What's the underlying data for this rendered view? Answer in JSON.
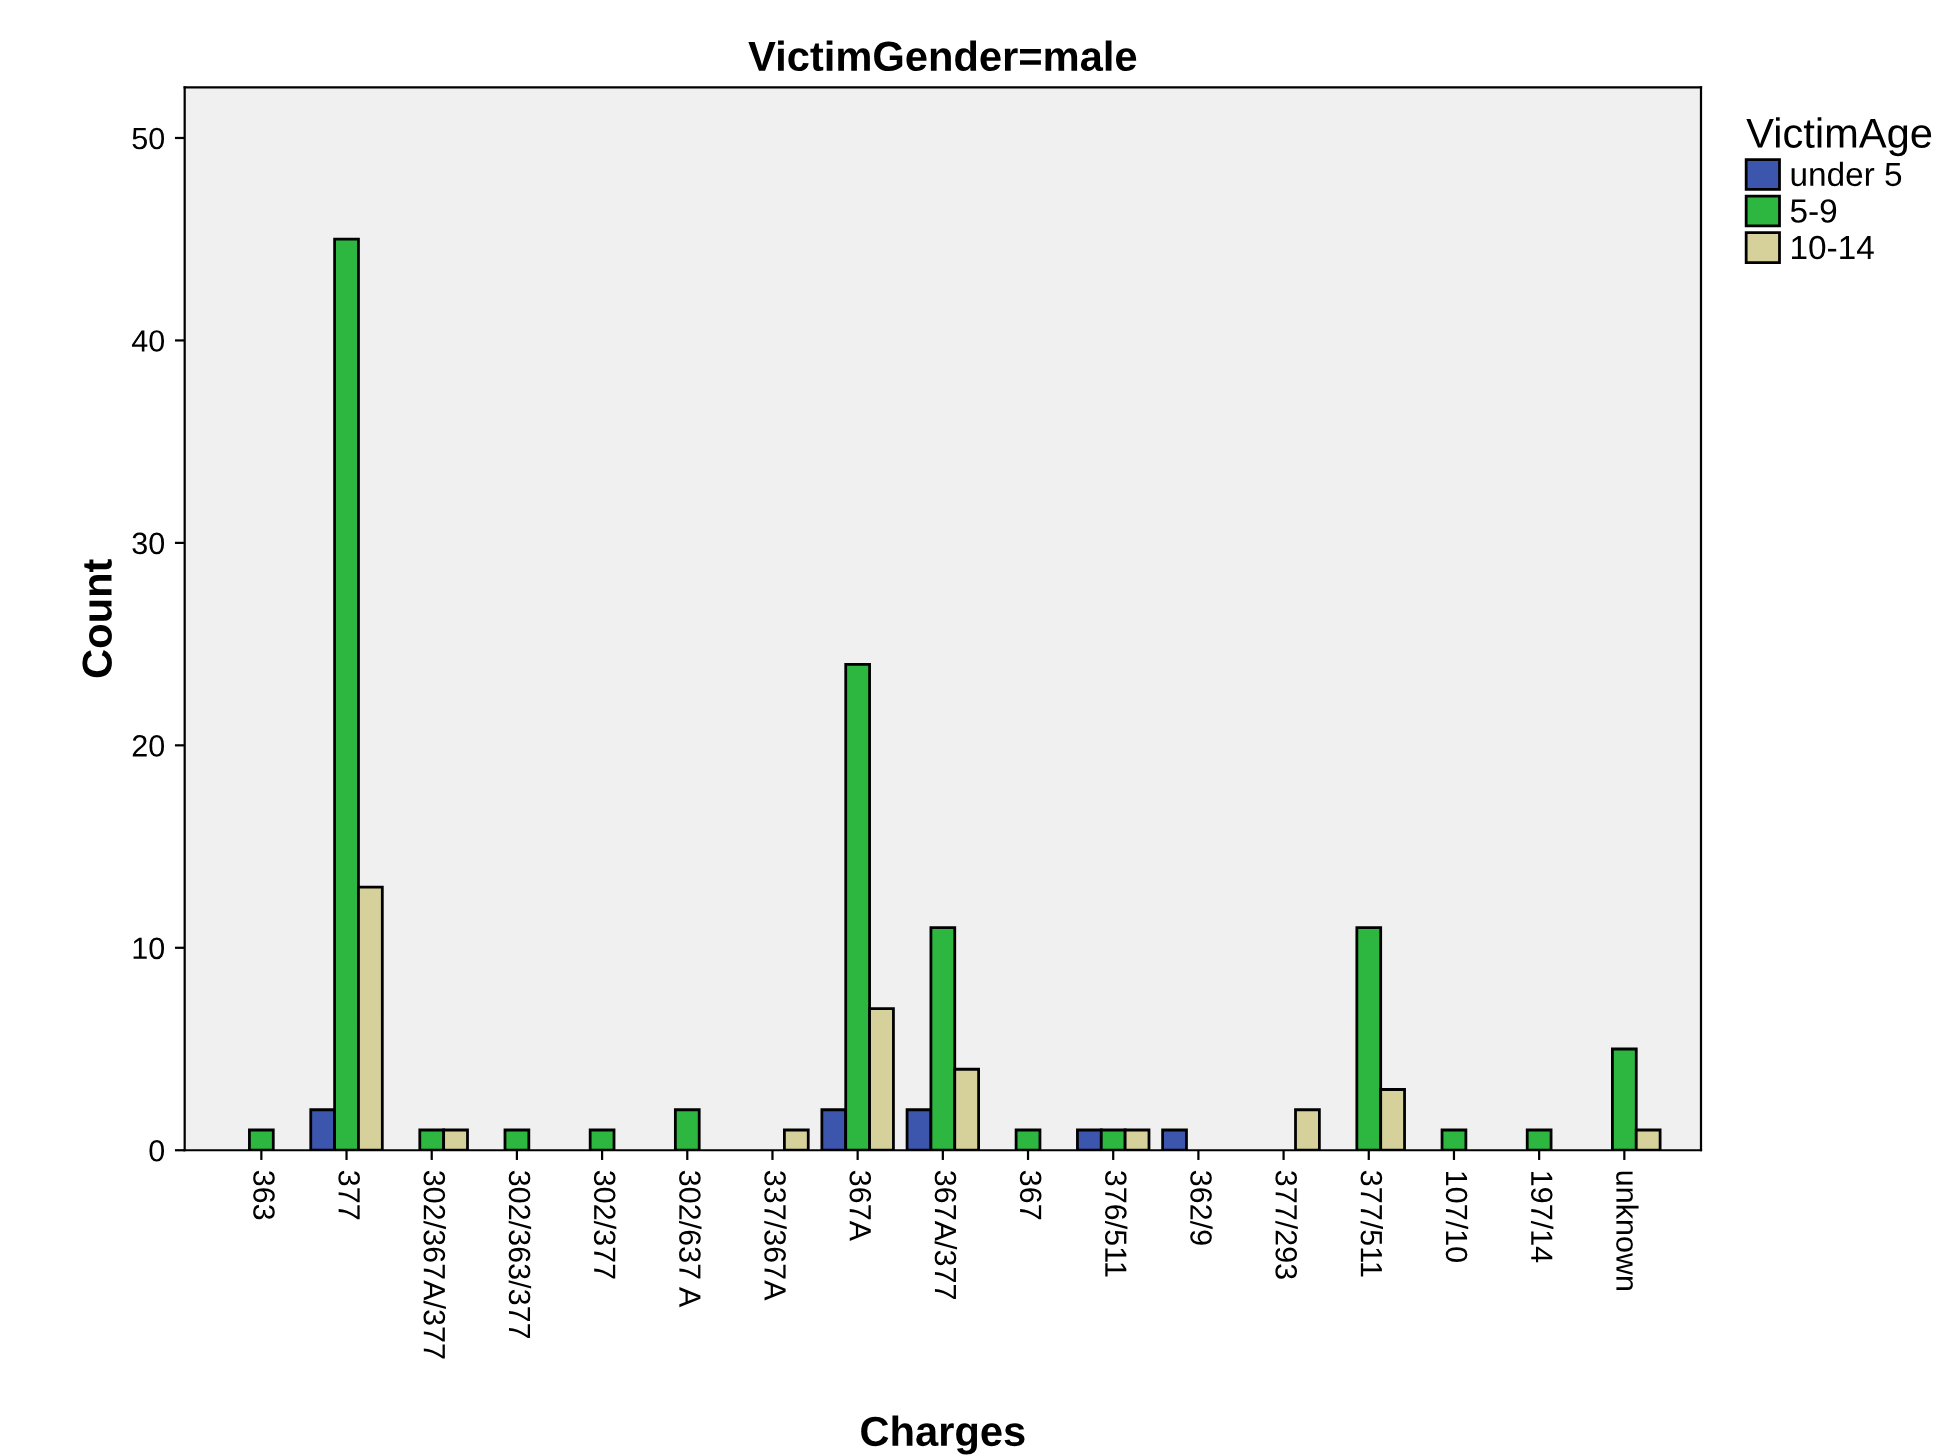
{
  "chart_data": {
    "type": "bar",
    "title": "VictimGender=male",
    "xlabel": "Charges",
    "ylabel": "Count",
    "legend_title": "VictimAge",
    "categories": [
      "363",
      "377",
      "302/367A/377",
      "302/363/377",
      "302/377",
      "302/637 A",
      "337/367A",
      "367A",
      "367A/377",
      "367",
      "376/511",
      "362/9",
      "377/293",
      "377/511",
      "107/10",
      "197/14",
      "unknown"
    ],
    "series": [
      {
        "name": "under 5",
        "color": "#3c55ad",
        "values": [
          null,
          2,
          null,
          null,
          null,
          null,
          null,
          2,
          2,
          null,
          1,
          1,
          null,
          null,
          null,
          null,
          null
        ]
      },
      {
        "name": "5-9",
        "color": "#2db640",
        "values": [
          1,
          45,
          1,
          1,
          1,
          2,
          null,
          24,
          11,
          1,
          1,
          null,
          null,
          11,
          1,
          1,
          5
        ]
      },
      {
        "name": "10-14",
        "color": "#d6d09a",
        "values": [
          null,
          13,
          1,
          null,
          null,
          null,
          1,
          7,
          4,
          null,
          1,
          null,
          2,
          3,
          null,
          null,
          1
        ]
      }
    ],
    "ylim": [
      0,
      52.5
    ],
    "yticks": [
      0,
      10,
      20,
      30,
      40,
      50
    ],
    "grid": false,
    "legend": "right"
  }
}
